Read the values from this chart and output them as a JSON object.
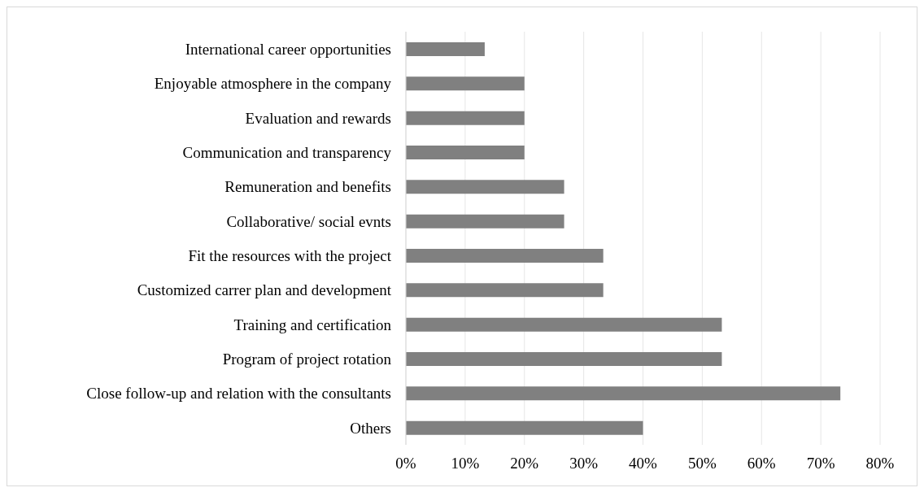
{
  "chart_data": {
    "type": "bar",
    "orientation": "horizontal",
    "categories": [
      "International career opportunities",
      "Enjoyable atmosphere in the company",
      "Evaluation and rewards",
      "Communication and transparency",
      "Remuneration and benefits",
      "Collaborative/ social evnts",
      "Fit the resources with the project",
      "Customized carrer plan and development",
      "Training and certification",
      "Program of project rotation",
      "Close follow-up and relation with the consultants",
      "Others"
    ],
    "values": [
      13.3,
      20,
      20,
      20,
      26.7,
      26.7,
      33.3,
      33.3,
      53.3,
      53.3,
      73.3,
      40
    ],
    "color": "#808080",
    "xlim": [
      0,
      80
    ],
    "xticks": [
      {
        "value": 0,
        "label": "0%"
      },
      {
        "value": 10,
        "label": "10%"
      },
      {
        "value": 20,
        "label": "20%"
      },
      {
        "value": 30,
        "label": "30%"
      },
      {
        "value": 40,
        "label": "40%"
      },
      {
        "value": 50,
        "label": "50%"
      },
      {
        "value": 60,
        "label": "60%"
      },
      {
        "value": 70,
        "label": "70%"
      },
      {
        "value": 80,
        "label": "80%"
      }
    ],
    "grid": "x"
  }
}
